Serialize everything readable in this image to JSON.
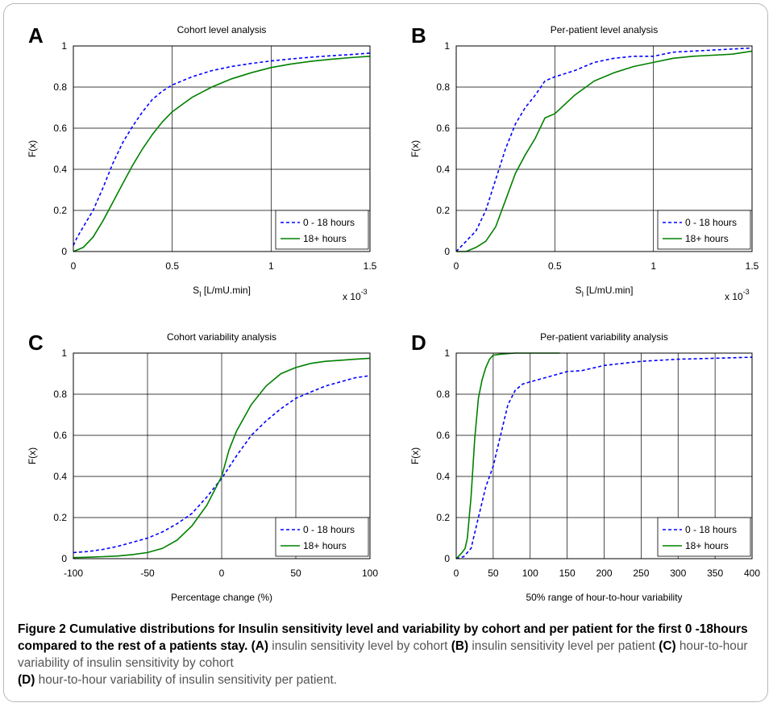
{
  "figure": {
    "caption_title": "Figure 2 Cumulative distributions for Insulin sensitivity level and variability by cohort and per patient for the first 0 -18hours compared to the rest of a patients stay.",
    "caption_parts": [
      {
        "ref": "(A)",
        "text": " insulin sensitivity level by cohort "
      },
      {
        "ref": "(B)",
        "text": " insulin sensitivity level per patient "
      },
      {
        "ref": "(C)",
        "text": " hour-to-hour variability of insulin sensitivity by cohort "
      },
      {
        "ref": "(D)",
        "text": " hour-to-hour variability of insulin sensitivity per patient."
      }
    ]
  },
  "chart_data": [
    {
      "panel": "A",
      "type": "line",
      "title": "Cohort level analysis",
      "xlabel": "S",
      "xlabel_sub": "I",
      "xlabel_rest": " [L/mU.min]",
      "x_multiplier": "x 10",
      "x_multiplier_exp": "-3",
      "ylabel": "F(x)",
      "xlim": [
        0,
        1.5
      ],
      "ylim": [
        0,
        1
      ],
      "xticks": [
        0,
        0.5,
        1,
        1.5
      ],
      "xtick_labels": [
        "0",
        "0.5",
        "1",
        "1.5"
      ],
      "yticks": [
        0,
        0.2,
        0.4,
        0.6,
        0.8,
        1
      ],
      "ytick_labels": [
        "0",
        "0.2",
        "0.4",
        "0.6",
        "0.8",
        "1"
      ],
      "grid": true,
      "legend_position": "bottom-right",
      "series": [
        {
          "name": "0 - 18 hours",
          "color": "#0000ff",
          "dash": true,
          "x": [
            0,
            0.02,
            0.05,
            0.1,
            0.15,
            0.2,
            0.25,
            0.3,
            0.35,
            0.4,
            0.45,
            0.5,
            0.6,
            0.7,
            0.8,
            0.9,
            1.0,
            1.1,
            1.2,
            1.3,
            1.4,
            1.5
          ],
          "y": [
            0.03,
            0.07,
            0.12,
            0.2,
            0.31,
            0.43,
            0.53,
            0.61,
            0.68,
            0.74,
            0.78,
            0.81,
            0.85,
            0.88,
            0.9,
            0.915,
            0.927,
            0.937,
            0.945,
            0.952,
            0.958,
            0.965
          ]
        },
        {
          "name": "18+ hours",
          "color": "#008000",
          "dash": false,
          "x": [
            0,
            0.05,
            0.1,
            0.15,
            0.2,
            0.25,
            0.3,
            0.35,
            0.4,
            0.45,
            0.5,
            0.6,
            0.7,
            0.8,
            0.9,
            1.0,
            1.1,
            1.2,
            1.3,
            1.4,
            1.5
          ],
          "y": [
            0.0,
            0.02,
            0.07,
            0.15,
            0.24,
            0.33,
            0.42,
            0.5,
            0.57,
            0.63,
            0.68,
            0.75,
            0.8,
            0.84,
            0.87,
            0.895,
            0.912,
            0.925,
            0.935,
            0.943,
            0.95
          ]
        }
      ]
    },
    {
      "panel": "B",
      "type": "line",
      "title": "Per-patient level analysis",
      "xlabel": "S",
      "xlabel_sub": "I",
      "xlabel_rest": " [L/mU.min]",
      "x_multiplier": "x 10",
      "x_multiplier_exp": "-3",
      "ylabel": "F(x)",
      "xlim": [
        0,
        1.5
      ],
      "ylim": [
        0,
        1
      ],
      "xticks": [
        0,
        0.5,
        1,
        1.5
      ],
      "xtick_labels": [
        "0",
        "0.5",
        "1",
        "1.5"
      ],
      "yticks": [
        0,
        0.2,
        0.4,
        0.6,
        0.8,
        1
      ],
      "ytick_labels": [
        "0",
        "0.2",
        "0.4",
        "0.6",
        "0.8",
        "1"
      ],
      "grid": true,
      "legend_position": "bottom-right",
      "series": [
        {
          "name": "0 - 18 hours",
          "color": "#0000ff",
          "dash": true,
          "x": [
            0,
            0.05,
            0.1,
            0.15,
            0.2,
            0.25,
            0.3,
            0.35,
            0.4,
            0.45,
            0.5,
            0.6,
            0.7,
            0.8,
            0.9,
            1.0,
            1.1,
            1.2,
            1.3,
            1.4,
            1.5
          ],
          "y": [
            0.0,
            0.05,
            0.1,
            0.2,
            0.35,
            0.5,
            0.62,
            0.7,
            0.76,
            0.83,
            0.85,
            0.88,
            0.92,
            0.94,
            0.95,
            0.95,
            0.97,
            0.975,
            0.98,
            0.985,
            0.99
          ]
        },
        {
          "name": "18+ hours",
          "color": "#008000",
          "dash": false,
          "x": [
            0,
            0.05,
            0.1,
            0.15,
            0.2,
            0.25,
            0.3,
            0.35,
            0.4,
            0.45,
            0.5,
            0.6,
            0.7,
            0.8,
            0.9,
            1.0,
            1.1,
            1.2,
            1.3,
            1.4,
            1.5
          ],
          "y": [
            0.0,
            0.0,
            0.02,
            0.05,
            0.12,
            0.25,
            0.38,
            0.47,
            0.55,
            0.65,
            0.67,
            0.76,
            0.83,
            0.87,
            0.9,
            0.92,
            0.94,
            0.95,
            0.955,
            0.96,
            0.975
          ]
        }
      ]
    },
    {
      "panel": "C",
      "type": "line",
      "title": "Cohort variability analysis",
      "xlabel": "Percentage change (%)",
      "ylabel": "F(x)",
      "xlim": [
        -100,
        100
      ],
      "ylim": [
        0,
        1
      ],
      "xticks": [
        -100,
        -50,
        0,
        50,
        100
      ],
      "xtick_labels": [
        "-100",
        "-50",
        "0",
        "50",
        "100"
      ],
      "yticks": [
        0,
        0.2,
        0.4,
        0.6,
        0.8,
        1
      ],
      "ytick_labels": [
        "0",
        "0.2",
        "0.4",
        "0.6",
        "0.8",
        "1"
      ],
      "grid": true,
      "legend_position": "bottom-right",
      "series": [
        {
          "name": "0 - 18 hours",
          "color": "#0000ff",
          "dash": true,
          "x": [
            -100,
            -90,
            -80,
            -70,
            -60,
            -50,
            -40,
            -30,
            -20,
            -10,
            0,
            10,
            20,
            30,
            40,
            50,
            60,
            70,
            80,
            90,
            100
          ],
          "y": [
            0.03,
            0.035,
            0.045,
            0.06,
            0.08,
            0.1,
            0.13,
            0.17,
            0.22,
            0.3,
            0.39,
            0.5,
            0.6,
            0.67,
            0.73,
            0.78,
            0.81,
            0.84,
            0.86,
            0.88,
            0.89
          ]
        },
        {
          "name": "18+ hours",
          "color": "#008000",
          "dash": false,
          "x": [
            -100,
            -90,
            -80,
            -70,
            -60,
            -50,
            -40,
            -30,
            -20,
            -10,
            0,
            5,
            10,
            20,
            30,
            40,
            50,
            60,
            70,
            80,
            90,
            100
          ],
          "y": [
            0.005,
            0.007,
            0.01,
            0.013,
            0.02,
            0.03,
            0.05,
            0.09,
            0.16,
            0.26,
            0.4,
            0.53,
            0.62,
            0.75,
            0.84,
            0.9,
            0.93,
            0.95,
            0.96,
            0.965,
            0.97,
            0.975
          ]
        }
      ]
    },
    {
      "panel": "D",
      "type": "line",
      "title": "Per-patient variability analysis",
      "xlabel": "50% range of hour-to-hour variability",
      "ylabel": "F(x)",
      "xlim": [
        0,
        400
      ],
      "ylim": [
        0,
        1
      ],
      "xticks": [
        0,
        50,
        100,
        150,
        200,
        250,
        300,
        350,
        400
      ],
      "xtick_labels": [
        "0",
        "50",
        "100",
        "150",
        "200",
        "250",
        "300",
        "350",
        "400"
      ],
      "yticks": [
        0,
        0.2,
        0.4,
        0.6,
        0.8,
        1
      ],
      "ytick_labels": [
        "0",
        "0.2",
        "0.4",
        "0.6",
        "0.8",
        "1"
      ],
      "grid": true,
      "legend_position": "bottom-right",
      "series": [
        {
          "name": "0 - 18 hours",
          "color": "#0000ff",
          "dash": true,
          "x": [
            0,
            10,
            20,
            30,
            40,
            50,
            60,
            70,
            80,
            90,
            100,
            120,
            150,
            170,
            200,
            250,
            300,
            350,
            400
          ],
          "y": [
            0.0,
            0.01,
            0.05,
            0.2,
            0.35,
            0.45,
            0.6,
            0.75,
            0.82,
            0.85,
            0.86,
            0.88,
            0.91,
            0.915,
            0.94,
            0.96,
            0.97,
            0.975,
            0.98
          ]
        },
        {
          "name": "18+ hours",
          "color": "#008000",
          "dash": false,
          "x": [
            0,
            8,
            12,
            15,
            20,
            25,
            30,
            35,
            40,
            45,
            50,
            60,
            80,
            100,
            140
          ],
          "y": [
            0.0,
            0.03,
            0.05,
            0.1,
            0.3,
            0.58,
            0.78,
            0.87,
            0.93,
            0.97,
            0.99,
            0.995,
            1.0,
            1.0,
            1.0
          ]
        }
      ]
    }
  ]
}
